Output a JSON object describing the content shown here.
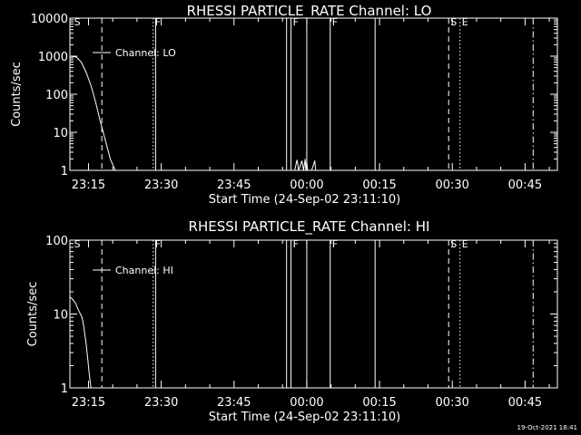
{
  "footer_timestamp": "19-Oct-2021 18:41",
  "chart_data": [
    {
      "type": "line",
      "title": "RHESSI PARTICLE_RATE Channel: LO",
      "xlabel": "Start Time (24-Sep-02 23:11:10)",
      "ylabel": "Counts/sec",
      "yscale": "log",
      "ylim": [
        1,
        10000
      ],
      "xlim": [
        "23:11:10",
        "00:51:40"
      ],
      "x_ticks": [
        "23:15",
        "23:30",
        "23:45",
        "00:00",
        "00:15",
        "00:30",
        "00:45"
      ],
      "y_ticks": [
        "1",
        "10",
        "100",
        "1000",
        "10000"
      ],
      "legend": {
        "entries": [
          "Channel: LO"
        ],
        "position": "top-left"
      },
      "series": [
        {
          "name": "Channel: LO",
          "points": [
            [
              "23:11:10",
              1000
            ],
            [
              "23:12:30",
              950
            ],
            [
              "23:13:30",
              700
            ],
            [
              "23:14:30",
              380
            ],
            [
              "23:15:30",
              170
            ],
            [
              "23:16:30",
              60
            ],
            [
              "23:17:30",
              18
            ],
            [
              "23:18:30",
              6
            ],
            [
              "23:19:30",
              2
            ],
            [
              "23:20:30",
              1
            ],
            [
              "23:57:30",
              1
            ],
            [
              "23:58:00",
              1.9
            ],
            [
              "23:58:20",
              1
            ],
            [
              "23:59:00",
              1.8
            ],
            [
              "23:59:20",
              1
            ],
            [
              "23:59:40",
              2
            ],
            [
              "23:59:50",
              1
            ],
            [
              "00:00:00",
              1.7
            ],
            [
              "00:00:10",
              1
            ],
            [
              "00:01:00",
              1
            ],
            [
              "00:01:40",
              1.8
            ],
            [
              "00:01:50",
              1
            ]
          ]
        }
      ],
      "event_markers": [
        {
          "time": "23:11:40",
          "label": "S",
          "style": "none"
        },
        {
          "time": "23:17:45",
          "label": "",
          "style": "dashed"
        },
        {
          "time": "23:28:20",
          "label": "F",
          "style": "dotted"
        },
        {
          "time": "23:28:50",
          "label": "",
          "style": "solid"
        },
        {
          "time": "23:55:50",
          "label": "",
          "style": "solid"
        },
        {
          "time": "23:56:45",
          "label": "F",
          "style": "solid"
        },
        {
          "time": "00:00:00",
          "label": "",
          "style": "solid"
        },
        {
          "time": "00:04:50",
          "label": "F",
          "style": "solid"
        },
        {
          "time": "00:14:05",
          "label": "",
          "style": "solid"
        },
        {
          "time": "00:29:15",
          "label": "S",
          "style": "dashed"
        },
        {
          "time": "00:31:35",
          "label": "E",
          "style": "dotted"
        },
        {
          "time": "00:46:40",
          "label": "",
          "style": "dashdot"
        }
      ]
    },
    {
      "type": "line",
      "title": "RHESSI PARTICLE_RATE Channel: HI",
      "xlabel": "Start Time (24-Sep-02 23:11:10)",
      "ylabel": "Counts/sec",
      "yscale": "log",
      "ylim": [
        1,
        100
      ],
      "xlim": [
        "23:11:10",
        "00:51:40"
      ],
      "x_ticks": [
        "23:15",
        "23:30",
        "23:45",
        "00:00",
        "00:15",
        "00:30",
        "00:45"
      ],
      "y_ticks": [
        "1",
        "10",
        "100"
      ],
      "legend": {
        "entries": [
          "Channel: HI"
        ],
        "position": "top-left"
      },
      "series": [
        {
          "name": "Channel: HI",
          "points": [
            [
              "23:11:10",
              17
            ],
            [
              "23:11:40",
              16
            ],
            [
              "23:12:20",
              14
            ],
            [
              "23:13:00",
              11
            ],
            [
              "23:13:40",
              9
            ],
            [
              "23:14:00",
              7
            ],
            [
              "23:14:30",
              4
            ],
            [
              "23:14:50",
              2.5
            ],
            [
              "23:15:10",
              1.5
            ],
            [
              "23:15:30",
              1
            ]
          ]
        }
      ],
      "event_markers": [
        {
          "time": "23:11:40",
          "label": "S",
          "style": "none"
        },
        {
          "time": "23:17:45",
          "label": "",
          "style": "dashed"
        },
        {
          "time": "23:28:20",
          "label": "F",
          "style": "dotted"
        },
        {
          "time": "23:28:50",
          "label": "",
          "style": "solid"
        },
        {
          "time": "23:55:50",
          "label": "",
          "style": "solid"
        },
        {
          "time": "23:56:45",
          "label": "F",
          "style": "solid"
        },
        {
          "time": "00:00:00",
          "label": "",
          "style": "solid"
        },
        {
          "time": "00:04:50",
          "label": "F",
          "style": "solid"
        },
        {
          "time": "00:14:05",
          "label": "",
          "style": "solid"
        },
        {
          "time": "00:29:15",
          "label": "S",
          "style": "dashed"
        },
        {
          "time": "00:31:35",
          "label": "E",
          "style": "dotted"
        },
        {
          "time": "00:46:40",
          "label": "",
          "style": "dashdot"
        }
      ]
    }
  ]
}
